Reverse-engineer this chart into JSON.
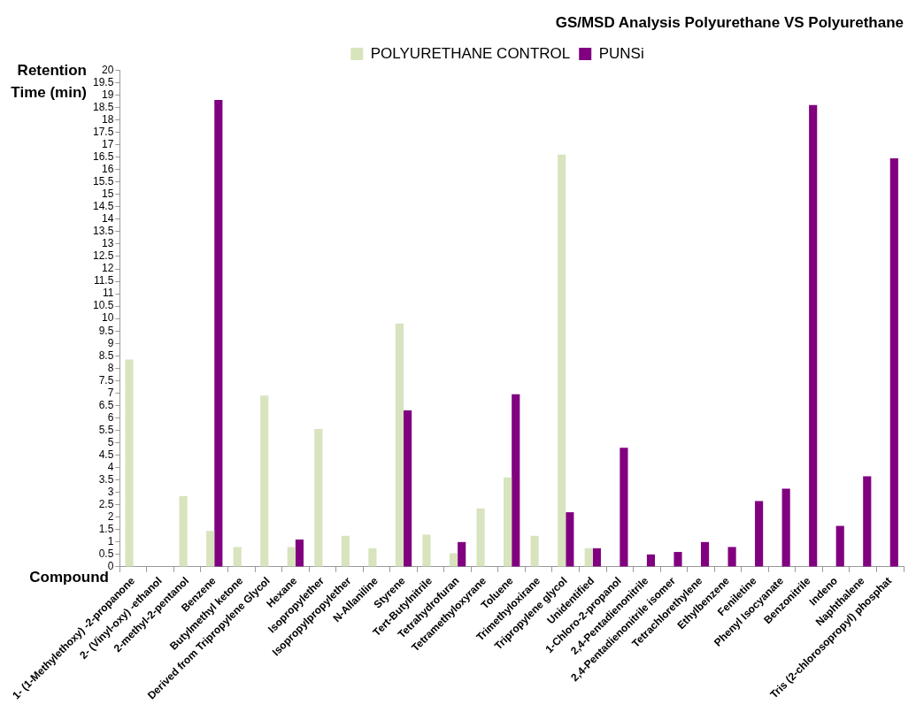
{
  "chart_data": {
    "type": "bar",
    "title": "GS/MSD Analysis Polyurethane VS Polyurethane",
    "xlabel": "Compound",
    "ylabel": "Retention Time (min)",
    "categories": [
      "1- (1-Methylethoxy) -2-propanone",
      "2- (Vinyl-oxy) -ethanol",
      "2-methyl-2-pentanol",
      "Benzene",
      "Butylmethyl ketone",
      "Derived from Tripropylene Glycol",
      "Hexane",
      "Isopropylether",
      "Isopropylpropylether",
      "N-Allaniline",
      "Styrene",
      "Tert-Butylnitrile",
      "Tetrahydrofuran",
      "Tetramethyloxyrane",
      "Toluene",
      "Trimethyloxirane",
      "Tripropylene glycol",
      "Unidentified",
      "1-Chloro-2-propanol",
      "2,4-Pentadienonitrile",
      "2,4-Pentadienonitrile isomer",
      "Tetrachlorethylene",
      "Ethylbenzene",
      "Feniletine",
      "Phenyl Isocyanate",
      "Benzonitrile",
      "Indeno",
      "Naphthalene",
      "Tris (2-chlorosopropyl) phosphat"
    ],
    "series": [
      {
        "name": "POLYURETHANE CONTROL",
        "color": "#d7e4bd",
        "values": [
          8.35,
          null,
          2.85,
          1.45,
          0.8,
          6.9,
          0.8,
          5.55,
          1.25,
          0.75,
          9.8,
          1.3,
          0.55,
          2.35,
          3.6,
          1.25,
          16.6,
          0.75,
          null,
          null,
          null,
          null,
          null,
          null,
          null,
          null,
          null,
          null,
          null
        ]
      },
      {
        "name": "PUNSi",
        "color": "#800080",
        "values": [
          null,
          null,
          null,
          18.8,
          null,
          null,
          1.1,
          null,
          null,
          null,
          6.3,
          null,
          1.0,
          null,
          6.95,
          null,
          2.2,
          0.75,
          4.8,
          0.5,
          0.6,
          1.0,
          0.8,
          2.65,
          3.15,
          18.6,
          1.65,
          3.65,
          16.45
        ]
      }
    ],
    "ylim": [
      0,
      20
    ],
    "yticks": [
      0,
      0.5,
      1,
      1.5,
      2,
      2.5,
      3,
      3.5,
      4,
      4.5,
      5,
      5.5,
      6,
      6.5,
      7,
      7.5,
      8,
      8.5,
      9,
      9.5,
      10,
      10.5,
      11,
      11.5,
      12,
      12.5,
      13,
      13.5,
      14,
      14.5,
      15,
      15.5,
      16,
      16.5,
      17,
      17.5,
      18,
      18.5,
      19,
      19.5,
      20
    ],
    "grid": false,
    "legend": "top"
  }
}
